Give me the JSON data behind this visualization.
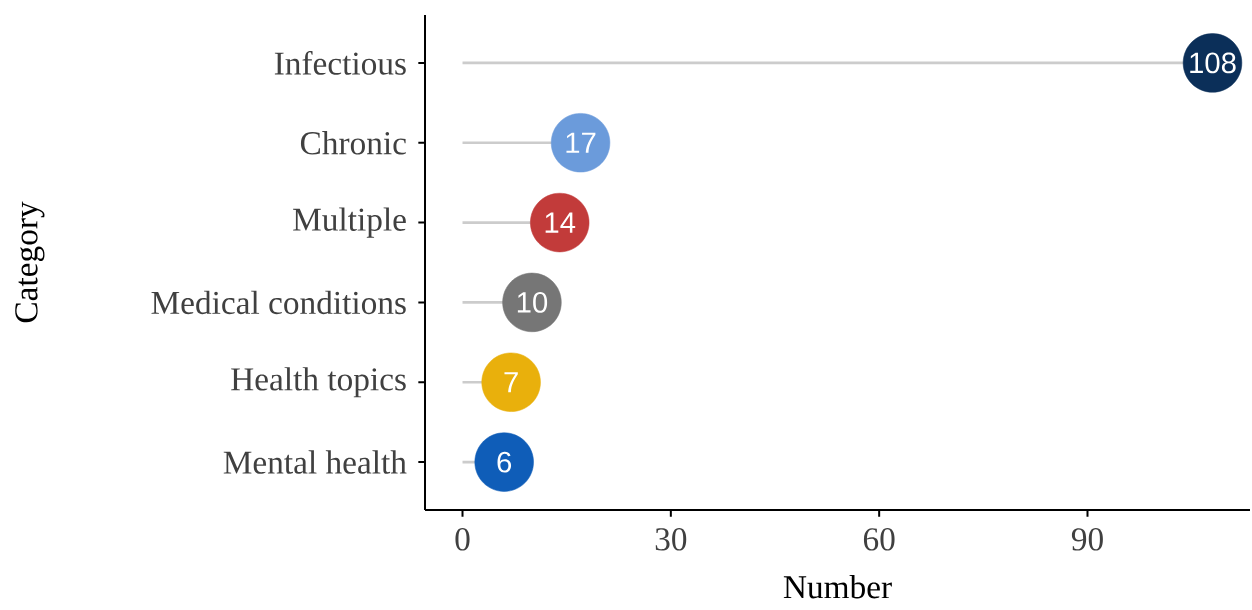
{
  "chart_data": {
    "type": "lollipop",
    "orientation": "horizontal",
    "xlabel": "Number",
    "ylabel": "Category",
    "categories": [
      "Infectious",
      "Chronic",
      "Multiple",
      "Medical conditions",
      "Health topics",
      "Mental health"
    ],
    "values": [
      108,
      17,
      14,
      10,
      7,
      6
    ],
    "colors": [
      "#0b2f59",
      "#6b9bdb",
      "#c23b3a",
      "#767676",
      "#e9b00c",
      "#0f5db8"
    ],
    "xlim": [
      -5.4,
      113.4
    ],
    "xticks": [
      0,
      30,
      60,
      90
    ],
    "data_labels": true,
    "marker": "circle",
    "grid": false
  }
}
